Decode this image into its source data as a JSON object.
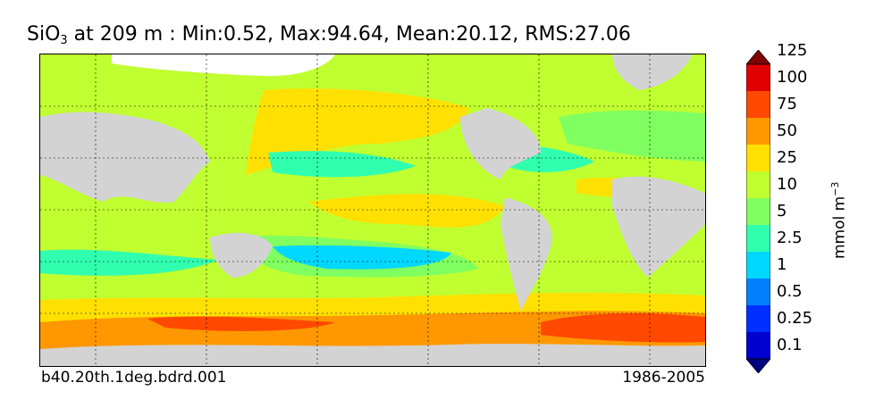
{
  "title": {
    "prefix": "SiO",
    "subscript": "3",
    "text": " at 209 m : Min:0.52, Max:94.64, Mean:20.12, RMS:27.06"
  },
  "footer": {
    "case_name": "b40.20th.1deg.bdrd.001",
    "years": "1986-2005"
  },
  "colorbar": {
    "unit_base": "mmol m",
    "unit_exponent": "−3",
    "levels": [
      "0.1",
      "0.25",
      "0.5",
      "1",
      "2.5",
      "5",
      "10",
      "25",
      "50",
      "75",
      "100",
      "125"
    ],
    "colors": [
      "#000080",
      "#0000d0",
      "#0030ff",
      "#0080ff",
      "#00d8ff",
      "#30ffb0",
      "#80ff60",
      "#c0ff30",
      "#ffe000",
      "#ff9800",
      "#ff4800",
      "#e00000",
      "#800000"
    ]
  },
  "map_colors": {
    "land": "#d3d3d3",
    "ice": "#ffffff",
    "ocean_levels": {
      "2.5-5": "#30ffb0",
      "1-2.5": "#00d8ff",
      "5-10": "#80ff60",
      "10-25": "#c0ff30",
      "25-50": "#ffe000",
      "50-75": "#ff9800",
      "75-100": "#ff4800"
    }
  }
}
